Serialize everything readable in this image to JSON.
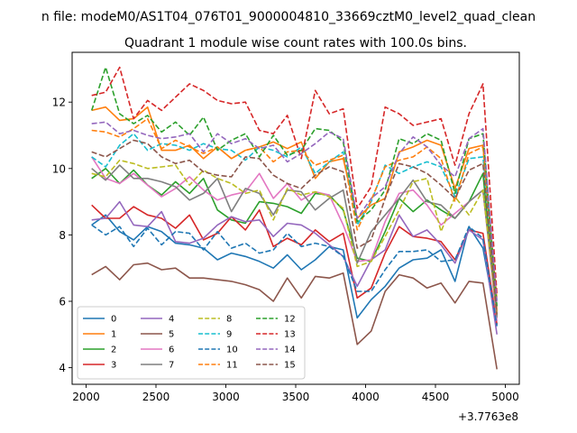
{
  "figure_title": "n file: modeM0/AS1T04_076T01_9000004810_33669cztM0_level2_quad_clean",
  "chart_data": {
    "type": "line",
    "title": "Quadrant 1 module wise count rates with 100.0s bins.",
    "xlabel": "",
    "ylabel": "",
    "x_offset_label": "+3.7763e8",
    "xlim": [
      1900,
      5100
    ],
    "ylim": [
      3.5,
      13.5
    ],
    "x_ticks": [
      2000,
      2500,
      3000,
      3500,
      4000,
      4500,
      5000
    ],
    "x_tick_labels": [
      "2000",
      "2500",
      "3000",
      "3500",
      "4000",
      "4500",
      "5000"
    ],
    "y_ticks": [
      4,
      6,
      8,
      10,
      12
    ],
    "y_tick_labels": [
      "4",
      "6",
      "8",
      "10",
      "12"
    ],
    "grid": false,
    "legend_position": "lower-left",
    "x": [
      2040,
      2140,
      2240,
      2340,
      2440,
      2540,
      2640,
      2740,
      2840,
      2940,
      3040,
      3140,
      3240,
      3340,
      3440,
      3540,
      3640,
      3740,
      3840,
      3940,
      4040,
      4140,
      4240,
      4340,
      4440,
      4540,
      4640,
      4740,
      4840,
      4940
    ],
    "series": [
      {
        "name": "0",
        "color": "#1f77b4",
        "dash": "solid",
        "values": [
          8.3,
          8.6,
          8.1,
          7.85,
          8.25,
          8.1,
          7.75,
          7.7,
          7.6,
          7.25,
          7.45,
          7.35,
          7.2,
          7.0,
          7.4,
          6.95,
          7.25,
          7.65,
          7.55,
          5.5,
          6.05,
          6.45,
          7.0,
          7.25,
          7.3,
          7.55,
          6.6,
          8.25,
          7.6,
          5.3
        ]
      },
      {
        "name": "1",
        "color": "#ff7f0e",
        "dash": "solid",
        "values": [
          11.75,
          11.85,
          11.45,
          11.5,
          11.85,
          10.55,
          10.55,
          10.7,
          10.3,
          10.65,
          10.3,
          10.55,
          10.65,
          10.8,
          10.6,
          10.8,
          9.7,
          10.2,
          10.3,
          8.5,
          8.9,
          9.1,
          10.5,
          10.65,
          10.85,
          10.7,
          9.4,
          10.6,
          10.7,
          5.7
        ]
      },
      {
        "name": "2",
        "color": "#2ca02c",
        "dash": "solid",
        "values": [
          9.7,
          10.0,
          9.55,
          9.95,
          9.5,
          9.2,
          9.6,
          9.25,
          9.7,
          8.75,
          8.45,
          8.35,
          9.0,
          8.95,
          8.85,
          8.65,
          9.25,
          9.2,
          8.75,
          7.3,
          7.2,
          8.1,
          9.1,
          8.7,
          9.05,
          8.75,
          8.5,
          9.0,
          9.85,
          5.5
        ]
      },
      {
        "name": "3",
        "color": "#d62728",
        "dash": "solid",
        "values": [
          8.9,
          8.5,
          8.5,
          8.85,
          8.6,
          8.5,
          8.2,
          8.6,
          7.85,
          8.05,
          8.55,
          8.15,
          8.75,
          7.65,
          7.9,
          7.7,
          8.15,
          7.8,
          8.05,
          6.1,
          6.4,
          7.45,
          8.25,
          7.95,
          7.9,
          7.8,
          7.25,
          8.15,
          8.05,
          5.3
        ]
      },
      {
        "name": "4",
        "color": "#9467bd",
        "dash": "solid",
        "values": [
          8.45,
          8.5,
          9.0,
          8.3,
          8.25,
          8.7,
          7.8,
          7.75,
          7.9,
          8.3,
          8.55,
          8.4,
          8.45,
          7.95,
          8.35,
          8.3,
          8.05,
          7.7,
          7.35,
          6.45,
          7.25,
          7.55,
          8.6,
          7.95,
          8.15,
          7.7,
          7.15,
          8.15,
          7.85,
          5.0
        ]
      },
      {
        "name": "5",
        "color": "#8c564b",
        "dash": "solid",
        "values": [
          6.8,
          7.05,
          6.65,
          7.1,
          7.15,
          6.95,
          7.0,
          6.7,
          6.7,
          6.65,
          6.6,
          6.5,
          6.35,
          6.0,
          6.7,
          6.1,
          6.75,
          6.7,
          6.85,
          4.7,
          5.1,
          6.3,
          6.8,
          6.7,
          6.4,
          6.55,
          5.95,
          6.6,
          6.55,
          3.95
        ]
      },
      {
        "name": "6",
        "color": "#e377c2",
        "dash": "solid",
        "values": [
          10.35,
          9.7,
          9.55,
          9.85,
          9.5,
          9.15,
          9.4,
          9.75,
          9.35,
          9.05,
          9.2,
          9.3,
          9.85,
          9.1,
          9.55,
          9.05,
          9.3,
          9.2,
          8.3,
          7.2,
          7.25,
          8.4,
          9.25,
          9.35,
          8.9,
          8.3,
          8.65,
          9.0,
          9.35,
          5.4
        ]
      },
      {
        "name": "7",
        "color": "#7f7f7f",
        "dash": "solid",
        "values": [
          10.0,
          9.65,
          10.1,
          9.7,
          9.7,
          9.6,
          9.45,
          9.05,
          9.25,
          9.7,
          8.7,
          9.4,
          9.25,
          8.6,
          9.35,
          9.3,
          8.75,
          9.1,
          9.35,
          7.15,
          8.1,
          8.6,
          9.1,
          9.65,
          9.0,
          8.9,
          8.5,
          9.0,
          9.35,
          5.55
        ]
      },
      {
        "name": "8",
        "color": "#bcbd22",
        "dash": "dashed",
        "values": [
          9.85,
          9.75,
          10.25,
          10.15,
          10.0,
          10.05,
          10.1,
          9.5,
          9.95,
          9.7,
          9.55,
          9.25,
          9.35,
          8.45,
          9.4,
          9.2,
          9.3,
          9.15,
          8.8,
          7.05,
          7.2,
          7.95,
          8.75,
          9.6,
          9.7,
          8.1,
          9.15,
          8.6,
          9.35,
          5.6
        ]
      },
      {
        "name": "9",
        "color": "#17becf",
        "dash": "dashed",
        "values": [
          10.35,
          10.05,
          10.7,
          11.05,
          10.55,
          10.75,
          10.7,
          10.55,
          10.75,
          10.6,
          10.55,
          10.25,
          10.65,
          10.55,
          10.35,
          10.65,
          9.85,
          10.2,
          10.5,
          8.3,
          9.0,
          10.1,
          9.85,
          10.05,
          10.2,
          10.05,
          9.15,
          10.3,
          10.35,
          6.05
        ]
      },
      {
        "name": "10",
        "color": "#1f77b4",
        "dash": "dashed",
        "values": [
          8.3,
          8.0,
          8.25,
          7.65,
          8.2,
          7.7,
          8.1,
          8.05,
          7.55,
          8.1,
          7.6,
          7.75,
          7.45,
          7.55,
          8.05,
          7.65,
          7.75,
          7.65,
          7.35,
          6.3,
          6.3,
          6.95,
          7.5,
          7.5,
          7.55,
          7.2,
          7.25,
          8.25,
          7.9,
          5.25
        ]
      },
      {
        "name": "11",
        "color": "#ff7f0e",
        "dash": "dashed",
        "values": [
          11.15,
          11.1,
          10.95,
          11.2,
          11.5,
          10.6,
          10.85,
          10.65,
          10.45,
          10.65,
          10.3,
          10.55,
          10.65,
          10.2,
          10.5,
          10.55,
          10.1,
          10.25,
          10.4,
          8.15,
          9.05,
          10.05,
          10.25,
          10.35,
          10.65,
          10.3,
          9.0,
          10.45,
          10.65,
          6.05
        ]
      },
      {
        "name": "12",
        "color": "#2ca02c",
        "dash": "dashed",
        "values": [
          11.75,
          13.05,
          11.65,
          11.35,
          11.6,
          11.1,
          11.4,
          11.0,
          11.55,
          10.55,
          10.85,
          11.05,
          10.35,
          11.0,
          10.4,
          10.55,
          11.2,
          11.15,
          10.8,
          8.4,
          8.75,
          9.35,
          10.9,
          10.75,
          11.05,
          10.85,
          9.25,
          10.9,
          11.05,
          5.85
        ]
      },
      {
        "name": "13",
        "color": "#d62728",
        "dash": "dashed",
        "values": [
          12.2,
          12.3,
          13.05,
          11.5,
          12.05,
          11.75,
          12.15,
          12.55,
          12.35,
          12.05,
          11.95,
          12.0,
          11.15,
          11.05,
          11.6,
          10.3,
          12.35,
          11.65,
          11.8,
          8.8,
          9.45,
          11.85,
          11.65,
          11.3,
          11.4,
          11.5,
          10.1,
          11.65,
          12.55,
          6.2
        ]
      },
      {
        "name": "14",
        "color": "#9467bd",
        "dash": "dashed",
        "values": [
          11.35,
          11.4,
          11.05,
          11.15,
          11.0,
          10.9,
          10.95,
          11.05,
          10.5,
          11.05,
          10.75,
          10.9,
          10.6,
          10.7,
          10.2,
          10.45,
          10.75,
          11.1,
          10.9,
          8.5,
          9.1,
          9.45,
          10.45,
          10.95,
          10.65,
          10.1,
          9.75,
          10.9,
          11.2,
          5.95
        ]
      },
      {
        "name": "15",
        "color": "#8c564b",
        "dash": "dashed",
        "values": [
          10.5,
          10.35,
          10.6,
          10.85,
          10.75,
          10.35,
          10.15,
          10.25,
          9.9,
          9.8,
          9.75,
          10.35,
          10.3,
          9.8,
          9.55,
          9.4,
          9.8,
          10.05,
          9.9,
          7.6,
          7.85,
          9.1,
          10.15,
          10.05,
          9.85,
          9.5,
          9.1,
          9.95,
          10.15,
          5.6
        ]
      }
    ]
  }
}
